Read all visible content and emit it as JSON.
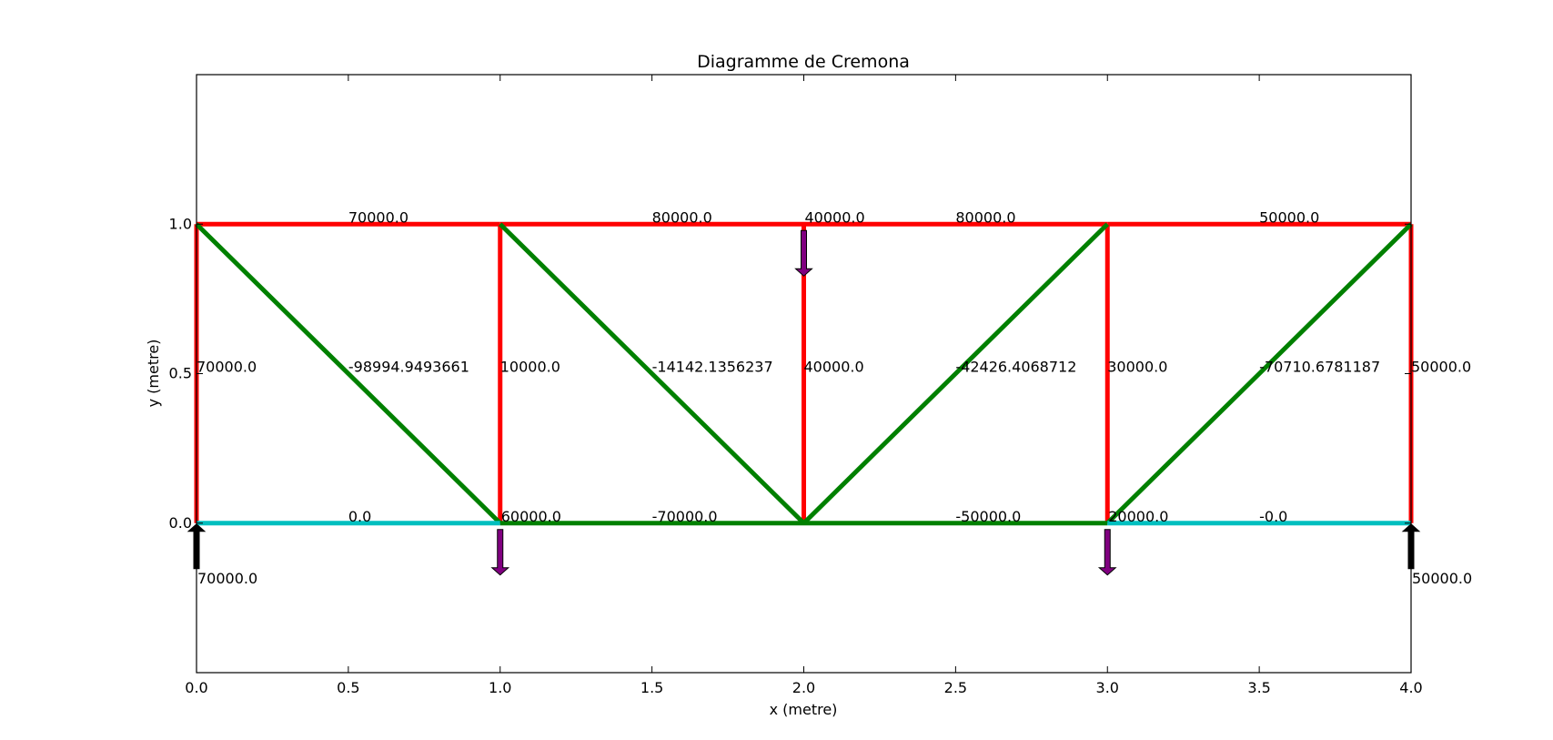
{
  "chart_data": {
    "type": "line",
    "title": "Diagramme de Cremona",
    "xlabel": "x (metre)",
    "ylabel": "y (metre)",
    "xlim": [
      0.0,
      4.0
    ],
    "ylim": [
      -0.5,
      1.5
    ],
    "x_ticks": [
      "0.0",
      "0.5",
      "1.0",
      "1.5",
      "2.0",
      "2.5",
      "3.0",
      "3.5",
      "4.0"
    ],
    "y_ticks": [
      "0.0",
      "0.5",
      "1.0"
    ],
    "colors": {
      "tension": "#ff0000",
      "compression": "#008000",
      "zero": "#00bfbf",
      "load_arrow": "#800080",
      "reaction_arrow": "#000000",
      "axes": "#000000"
    },
    "members": [
      {
        "x": [
          0.0,
          1.0
        ],
        "y": [
          1.0,
          1.0
        ],
        "color": "tension",
        "label": "70000.0",
        "label_at": [
          0.5,
          1.0
        ]
      },
      {
        "x": [
          1.0,
          2.0
        ],
        "y": [
          1.0,
          1.0
        ],
        "color": "tension",
        "label": "80000.0",
        "label_at": [
          1.5,
          1.0
        ]
      },
      {
        "x": [
          2.0,
          3.0
        ],
        "y": [
          1.0,
          1.0
        ],
        "color": "tension",
        "label": "80000.0",
        "label_at": [
          2.5,
          1.0
        ]
      },
      {
        "x": [
          3.0,
          4.0
        ],
        "y": [
          1.0,
          1.0
        ],
        "color": "tension",
        "label": "50000.0",
        "label_at": [
          3.5,
          1.0
        ]
      },
      {
        "x": [
          0.0,
          0.0
        ],
        "y": [
          0.0,
          1.0
        ],
        "color": "tension",
        "label": "70000.0",
        "label_at": [
          0.0,
          0.5
        ]
      },
      {
        "x": [
          1.0,
          1.0
        ],
        "y": [
          0.0,
          1.0
        ],
        "color": "tension",
        "label": "10000.0",
        "label_at": [
          1.0,
          0.5
        ]
      },
      {
        "x": [
          2.0,
          2.0
        ],
        "y": [
          0.0,
          1.0
        ],
        "color": "tension",
        "label": "40000.0",
        "label_at": [
          2.0,
          0.5
        ]
      },
      {
        "x": [
          3.0,
          3.0
        ],
        "y": [
          0.0,
          1.0
        ],
        "color": "tension",
        "label": "30000.0",
        "label_at": [
          3.0,
          0.5
        ]
      },
      {
        "x": [
          4.0,
          4.0
        ],
        "y": [
          0.0,
          1.0
        ],
        "color": "tension",
        "label": "50000.0",
        "label_at": [
          4.0,
          0.5
        ]
      },
      {
        "x": [
          0.0,
          1.0
        ],
        "y": [
          1.0,
          0.0
        ],
        "color": "compression",
        "label": "-98994.9493661",
        "label_at": [
          0.5,
          0.5
        ]
      },
      {
        "x": [
          1.0,
          2.0
        ],
        "y": [
          1.0,
          0.0
        ],
        "color": "compression",
        "label": "-14142.1356237",
        "label_at": [
          1.5,
          0.5
        ]
      },
      {
        "x": [
          2.0,
          3.0
        ],
        "y": [
          0.0,
          1.0
        ],
        "color": "compression",
        "label": "-42426.4068712",
        "label_at": [
          2.5,
          0.5
        ]
      },
      {
        "x": [
          3.0,
          4.0
        ],
        "y": [
          0.0,
          1.0
        ],
        "color": "compression",
        "label": "-70710.6781187",
        "label_at": [
          3.5,
          0.5
        ]
      },
      {
        "x": [
          0.0,
          1.0
        ],
        "y": [
          0.0,
          0.0
        ],
        "color": "zero",
        "label": "0.0",
        "label_at": [
          0.5,
          0.0
        ]
      },
      {
        "x": [
          1.0,
          2.0
        ],
        "y": [
          0.0,
          0.0
        ],
        "color": "compression",
        "label": "-70000.0",
        "label_at": [
          1.5,
          0.0
        ]
      },
      {
        "x": [
          2.0,
          3.0
        ],
        "y": [
          0.0,
          0.0
        ],
        "color": "compression",
        "label": "-50000.0",
        "label_at": [
          2.5,
          0.0
        ]
      },
      {
        "x": [
          3.0,
          4.0
        ],
        "y": [
          0.0,
          0.0
        ],
        "color": "zero",
        "label": "-0.0",
        "label_at": [
          3.5,
          0.0
        ]
      }
    ],
    "loads": [
      {
        "x": 2.0,
        "y": 1.0,
        "value": "40000.0"
      },
      {
        "x": 1.0,
        "y": 0.0,
        "value": "60000.0"
      },
      {
        "x": 3.0,
        "y": 0.0,
        "value": "20000.0"
      }
    ],
    "reactions": [
      {
        "x": 0.0,
        "y": 0.0,
        "value": "70000.0"
      },
      {
        "x": 4.0,
        "y": 0.0,
        "value": "50000.0"
      }
    ]
  }
}
